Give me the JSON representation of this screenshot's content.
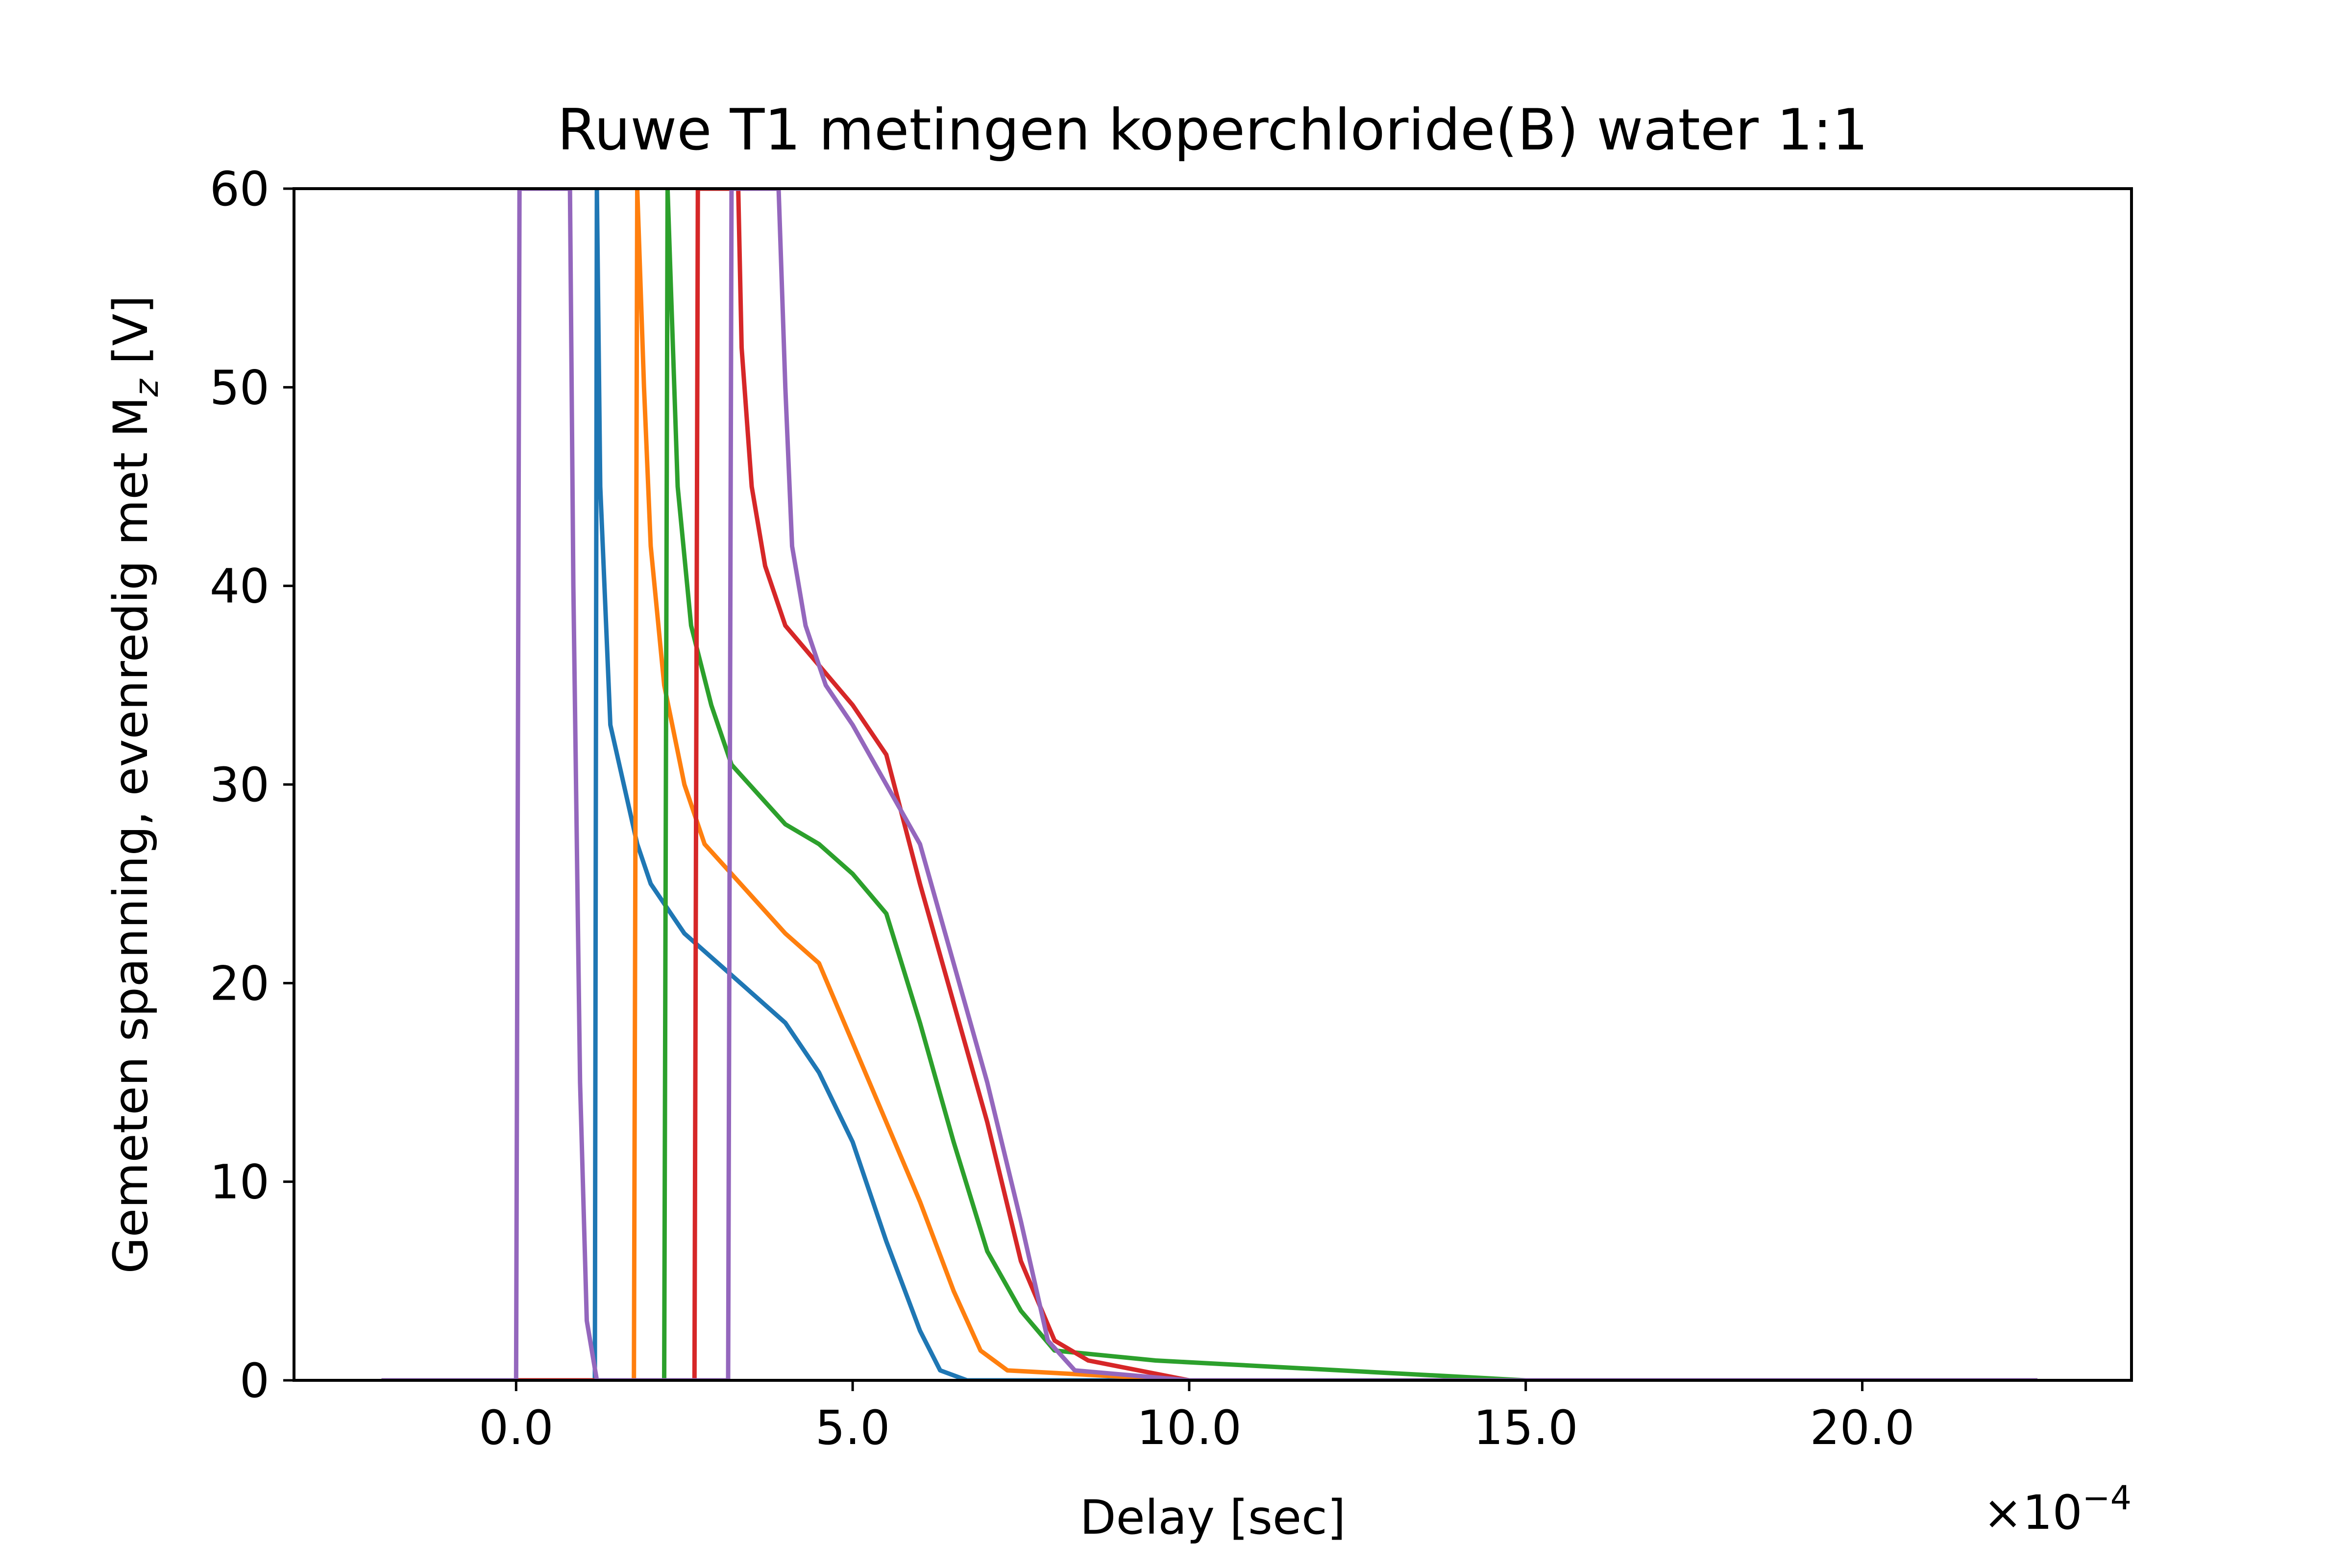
{
  "chart_data": {
    "type": "line",
    "title": "Ruwe T1 metingen koperchloride(B) water 1:1",
    "xlabel": "Delay [sec]",
    "ylabel": "Gemeten spanning, evenredig met M",
    "ylabel_subscript": "z",
    "ylabel_unit": " [V]",
    "x_offset_text": "×10",
    "x_offset_exponent": "−4",
    "x_scale": 0.0001,
    "xlim": [
      -3.3,
      24.0
    ],
    "ylim": [
      0,
      60
    ],
    "x_ticks": [
      0.0,
      5.0,
      10.0,
      15.0,
      20.0
    ],
    "x_tick_labels": [
      "0.0",
      "5.0",
      "10.0",
      "15.0",
      "20.0"
    ],
    "y_ticks": [
      0,
      10,
      20,
      30,
      40,
      50,
      60
    ],
    "y_tick_labels": [
      "0",
      "10",
      "20",
      "30",
      "40",
      "50",
      "60"
    ],
    "grid": false,
    "legend": "none",
    "series": [
      {
        "color": "#1f77b4",
        "x": [
          -2.0,
          -1.0,
          0.0,
          0.95,
          1.05,
          1.1,
          1.17,
          1.2,
          1.25,
          1.4,
          1.8,
          2.0,
          2.3,
          2.5,
          3.0,
          3.5,
          4.0,
          4.5,
          5.0,
          5.5,
          6.0,
          6.3,
          6.7,
          10.0,
          15.0,
          20.0,
          22.6
        ],
        "y": [
          0.0,
          0.0,
          0.0,
          0.0,
          0.0,
          0.0,
          0.0,
          60.0,
          45.0,
          33.0,
          27.0,
          25.0,
          23.5,
          22.5,
          21.0,
          19.5,
          18.0,
          15.5,
          12.0,
          7.0,
          2.5,
          0.5,
          0.0,
          0.0,
          0.0,
          0.0,
          0.0
        ]
      },
      {
        "color": "#ff7f0e",
        "x": [
          -2.0,
          0.0,
          1.0,
          1.6,
          1.75,
          1.8,
          1.9,
          2.0,
          2.2,
          2.5,
          2.8,
          3.2,
          3.6,
          4.0,
          4.5,
          5.0,
          5.5,
          6.0,
          6.5,
          6.9,
          7.3,
          10.0,
          15.0,
          20.0,
          22.6
        ],
        "y": [
          0.0,
          0.0,
          0.0,
          0.0,
          0.0,
          60.0,
          50.0,
          42.0,
          35.0,
          30.0,
          27.0,
          25.5,
          24.0,
          22.5,
          21.0,
          17.0,
          13.0,
          9.0,
          4.5,
          1.5,
          0.5,
          0.0,
          0.0,
          0.0,
          0.0
        ]
      },
      {
        "color": "#2ca02c",
        "x": [
          -2.0,
          0.0,
          1.5,
          2.1,
          2.2,
          2.25,
          2.3,
          2.4,
          2.6,
          2.9,
          3.2,
          3.6,
          4.0,
          4.5,
          5.0,
          5.5,
          6.0,
          6.5,
          7.0,
          7.5,
          8.0,
          9.5,
          15.0,
          22.6
        ],
        "y": [
          0.0,
          0.0,
          0.0,
          0.0,
          0.0,
          60.0,
          55.0,
          45.0,
          38.0,
          34.0,
          31.0,
          29.5,
          28.0,
          27.0,
          25.5,
          23.5,
          18.0,
          12.0,
          6.5,
          3.5,
          1.5,
          1.0,
          0.0,
          0.0
        ]
      },
      {
        "color": "#d62728",
        "x": [
          -2.0,
          0.0,
          2.0,
          2.65,
          2.7,
          3.3,
          3.35,
          3.5,
          3.7,
          4.0,
          4.5,
          5.0,
          5.5,
          6.0,
          6.5,
          7.0,
          7.5,
          8.0,
          8.5,
          10.0,
          15.0,
          22.6
        ],
        "y": [
          0.0,
          0.0,
          0.0,
          0.0,
          60.0,
          60.0,
          52.0,
          45.0,
          41.0,
          38.0,
          36.0,
          34.0,
          31.5,
          25.0,
          19.0,
          13.0,
          6.0,
          2.0,
          1.0,
          0.0,
          0.0,
          0.0
        ]
      },
      {
        "color": "#9467bd",
        "x": [
          -2.0,
          -0.2,
          0.0,
          0.05,
          0.8,
          0.85,
          0.95,
          1.05,
          1.2,
          2.0,
          3.15,
          3.2,
          3.9,
          4.0,
          4.1,
          4.3,
          4.6,
          5.0,
          5.5,
          6.0,
          6.5,
          7.0,
          7.5,
          7.9,
          8.3,
          10.0,
          15.0,
          20.0,
          22.6
        ],
        "y": [
          0.0,
          0.0,
          0.0,
          60.0,
          60.0,
          40.0,
          15.0,
          3.0,
          0.0,
          0.0,
          0.0,
          60.0,
          60.0,
          50.0,
          42.0,
          38.0,
          35.0,
          33.0,
          30.0,
          27.0,
          21.0,
          15.0,
          8.0,
          2.0,
          0.5,
          0.0,
          0.0,
          0.0,
          0.0
        ]
      }
    ]
  }
}
